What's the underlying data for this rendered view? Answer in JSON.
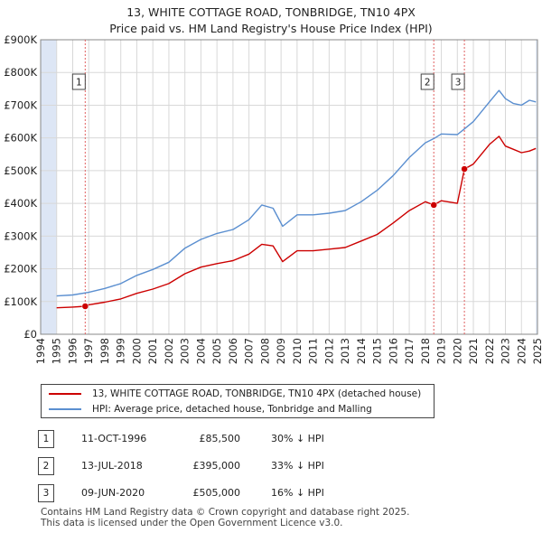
{
  "title": "13, WHITE COTTAGE ROAD, TONBRIDGE, TN10 4PX",
  "subtitle": "Price paid vs. HM Land Registry's House Price Index (HPI)",
  "colors": {
    "property": "#cc0000",
    "hpi": "#5b8fd0",
    "grid": "#d8d8d8",
    "marker_line": "#e06060",
    "shade": "#dde6f5"
  },
  "chart_data": {
    "type": "line",
    "x_axis": {
      "min": 1994,
      "max": 2025,
      "ticks": [
        "1994",
        "1995",
        "1996",
        "1997",
        "1998",
        "1999",
        "2000",
        "2001",
        "2002",
        "2003",
        "2004",
        "2005",
        "2006",
        "2007",
        "2008",
        "2009",
        "2010",
        "2011",
        "2012",
        "2013",
        "2014",
        "2015",
        "2016",
        "2017",
        "2018",
        "2019",
        "2020",
        "2021",
        "2022",
        "2023",
        "2024",
        "2025"
      ]
    },
    "y_axis": {
      "min": 0,
      "max": 900000,
      "ticks": [
        {
          "value": 0,
          "label": "£0"
        },
        {
          "value": 100000,
          "label": "£100K"
        },
        {
          "value": 200000,
          "label": "£200K"
        },
        {
          "value": 300000,
          "label": "£300K"
        },
        {
          "value": 400000,
          "label": "£400K"
        },
        {
          "value": 500000,
          "label": "£500K"
        },
        {
          "value": 600000,
          "label": "£600K"
        },
        {
          "value": 700000,
          "label": "£700K"
        },
        {
          "value": 800000,
          "label": "£800K"
        },
        {
          "value": 900000,
          "label": "£900K"
        }
      ]
    },
    "grid": true,
    "shaded_ranges": [
      [
        1994,
        1995.0
      ],
      [
        2024.9,
        2025
      ]
    ],
    "series": [
      {
        "name": "HPI: Average price, detached house, Tonbridge and Malling",
        "key": "hpi",
        "points": [
          [
            1995.0,
            117000
          ],
          [
            1996.0,
            120000
          ],
          [
            1997.0,
            128000
          ],
          [
            1998.0,
            140000
          ],
          [
            1999.0,
            155000
          ],
          [
            2000.0,
            180000
          ],
          [
            2001.0,
            198000
          ],
          [
            2002.0,
            220000
          ],
          [
            2003.0,
            263000
          ],
          [
            2004.0,
            290000
          ],
          [
            2005.0,
            308000
          ],
          [
            2006.0,
            320000
          ],
          [
            2007.0,
            350000
          ],
          [
            2007.8,
            395000
          ],
          [
            2008.5,
            385000
          ],
          [
            2009.1,
            330000
          ],
          [
            2010.0,
            365000
          ],
          [
            2011.0,
            365000
          ],
          [
            2012.0,
            370000
          ],
          [
            2013.0,
            378000
          ],
          [
            2014.0,
            405000
          ],
          [
            2015.0,
            440000
          ],
          [
            2016.0,
            485000
          ],
          [
            2017.0,
            540000
          ],
          [
            2018.0,
            585000
          ],
          [
            2018.6,
            600000
          ],
          [
            2019.0,
            612000
          ],
          [
            2020.0,
            610000
          ],
          [
            2020.5,
            630000
          ],
          [
            2021.0,
            650000
          ],
          [
            2022.0,
            710000
          ],
          [
            2022.6,
            745000
          ],
          [
            2023.0,
            720000
          ],
          [
            2023.5,
            705000
          ],
          [
            2024.0,
            700000
          ],
          [
            2024.5,
            715000
          ],
          [
            2024.9,
            710000
          ]
        ]
      },
      {
        "name": "13, WHITE COTTAGE ROAD, TONBRIDGE, TN10 4PX (detached house)",
        "key": "property",
        "points": [
          [
            1995.0,
            81000
          ],
          [
            1996.0,
            83000
          ],
          [
            1996.78,
            85500
          ],
          [
            1997.0,
            90000
          ],
          [
            1998.0,
            98000
          ],
          [
            1999.0,
            108000
          ],
          [
            2000.0,
            125000
          ],
          [
            2001.0,
            138000
          ],
          [
            2002.0,
            155000
          ],
          [
            2003.0,
            185000
          ],
          [
            2004.0,
            205000
          ],
          [
            2005.0,
            216000
          ],
          [
            2006.0,
            225000
          ],
          [
            2007.0,
            245000
          ],
          [
            2007.8,
            275000
          ],
          [
            2008.5,
            270000
          ],
          [
            2009.1,
            222000
          ],
          [
            2010.0,
            255000
          ],
          [
            2011.0,
            255000
          ],
          [
            2012.0,
            260000
          ],
          [
            2013.0,
            265000
          ],
          [
            2014.0,
            285000
          ],
          [
            2015.0,
            305000
          ],
          [
            2016.0,
            340000
          ],
          [
            2017.0,
            378000
          ],
          [
            2018.0,
            405000
          ],
          [
            2018.53,
            395000
          ],
          [
            2019.0,
            408000
          ],
          [
            2020.0,
            400000
          ],
          [
            2020.44,
            505000
          ],
          [
            2021.0,
            520000
          ],
          [
            2022.0,
            580000
          ],
          [
            2022.6,
            605000
          ],
          [
            2023.0,
            575000
          ],
          [
            2023.5,
            565000
          ],
          [
            2024.0,
            555000
          ],
          [
            2024.5,
            560000
          ],
          [
            2024.9,
            568000
          ]
        ]
      }
    ],
    "sales": [
      {
        "label": "1",
        "x": 1996.78,
        "value": 85500
      },
      {
        "label": "2",
        "x": 2018.53,
        "value": 395000
      },
      {
        "label": "3",
        "x": 2020.44,
        "value": 505000
      }
    ]
  },
  "legend": {
    "property": "13, WHITE COTTAGE ROAD, TONBRIDGE, TN10 4PX (detached house)",
    "hpi": "HPI: Average price, detached house, Tonbridge and Malling"
  },
  "sales_table": [
    {
      "num": "1",
      "date": "11-OCT-1996",
      "price": "£85,500",
      "diff": "30% ↓ HPI"
    },
    {
      "num": "2",
      "date": "13-JUL-2018",
      "price": "£395,000",
      "diff": "33% ↓ HPI"
    },
    {
      "num": "3",
      "date": "09-JUN-2020",
      "price": "£505,000",
      "diff": "16% ↓ HPI"
    }
  ],
  "footer": {
    "line1": "Contains HM Land Registry data © Crown copyright and database right 2025.",
    "line2": "This data is licensed under the Open Government Licence v3.0."
  }
}
